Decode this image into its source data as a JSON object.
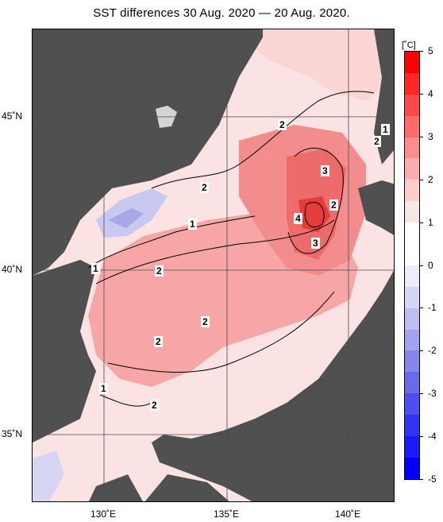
{
  "title": "SST differences 30 Aug. 2020 — 20 Aug. 2020.",
  "map": {
    "lat_labels": [
      "45˚N",
      "40˚N",
      "35˚N"
    ],
    "lon_labels": [
      "130˚E",
      "135˚E",
      "140˚E"
    ]
  },
  "colorbar": {
    "unit": "[˚C]",
    "ticks": [
      "5",
      "4",
      "3",
      "2",
      "1",
      "0",
      "-1",
      "-2",
      "-3",
      "-4",
      "-5"
    ],
    "colors": [
      "#ff0000",
      "#ff2626",
      "#ff4848",
      "#ff6a6a",
      "#fd8c8c",
      "#fcadad",
      "#fbcdcd",
      "#f9e6e6",
      "#ffffff",
      "#ffffff",
      "#ececfa",
      "#d6d6f6",
      "#bdbdf3",
      "#a2a2ef",
      "#8585eb",
      "#6a6aeb",
      "#4e4ef0",
      "#3232f3",
      "#1a1af8",
      "#0000ff"
    ]
  },
  "contour_labels": [
    "2",
    "2",
    "1",
    "1",
    "2",
    "2",
    "2",
    "2",
    "1",
    "2",
    "3",
    "2",
    "4",
    "3",
    "1",
    "2"
  ]
}
